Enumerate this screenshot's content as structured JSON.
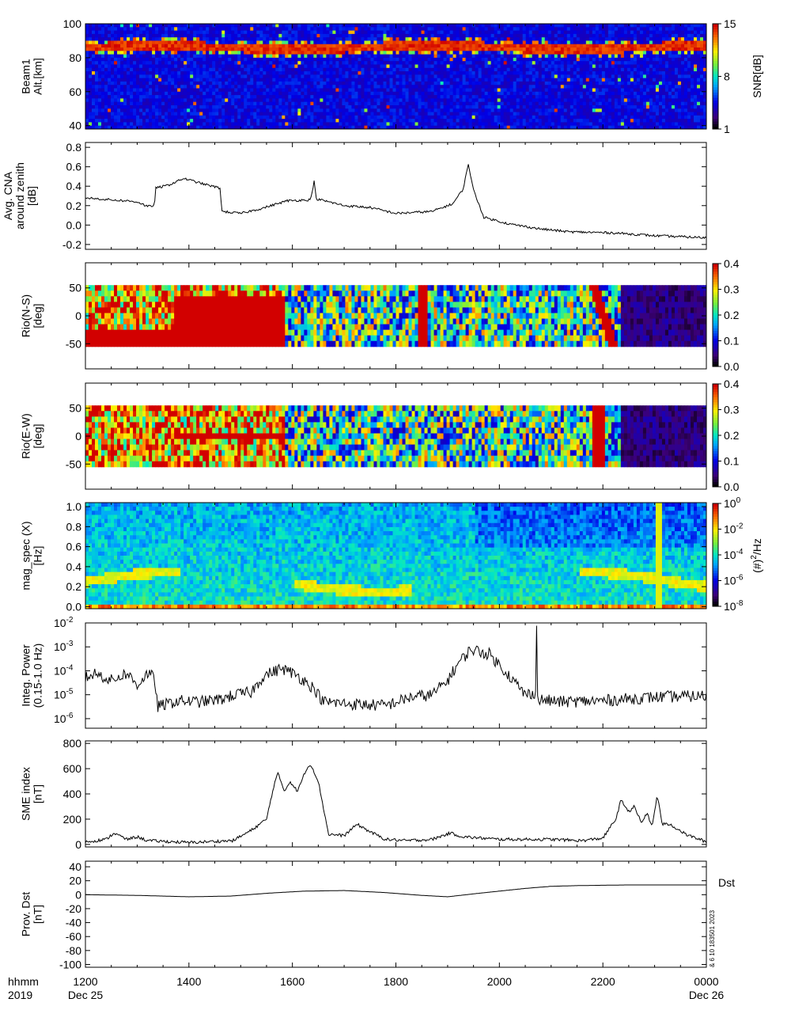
{
  "chart_data": [
    {
      "id": "beam",
      "type": "heatmap",
      "ylabel_lines": [
        "Beam1",
        "Alt.[km]"
      ],
      "ylim": [
        38,
        100
      ],
      "yticks": [
        40,
        60,
        80,
        100
      ],
      "colorbar": {
        "label": "SNR[dB]",
        "ticks": [
          "1",
          "8",
          "15"
        ],
        "range": [
          1,
          15
        ]
      },
      "description": "strong echo band around 82-90 km altitude across the whole interval"
    },
    {
      "id": "cna",
      "type": "line",
      "ylabel_lines": [
        "Avg. CNA",
        "around zenith",
        "[dB]"
      ],
      "ylim": [
        -0.25,
        0.85
      ],
      "yticks": [
        -0.2,
        0.0,
        0.2,
        0.4,
        0.6,
        0.8
      ],
      "ytick_labels": [
        "-0.2",
        "0.0",
        "0.2",
        "0.4",
        "0.6",
        "0.8"
      ],
      "points": [
        [
          0,
          0.28
        ],
        [
          0.5,
          0.26
        ],
        [
          1,
          0.24
        ],
        [
          1.2,
          0.19
        ],
        [
          1.33,
          0.2
        ],
        [
          1.36,
          0.38
        ],
        [
          1.6,
          0.41
        ],
        [
          1.9,
          0.48
        ],
        [
          2.3,
          0.42
        ],
        [
          2.6,
          0.38
        ],
        [
          2.64,
          0.14
        ],
        [
          3,
          0.12
        ],
        [
          3.4,
          0.17
        ],
        [
          3.9,
          0.25
        ],
        [
          4.35,
          0.26
        ],
        [
          4.42,
          0.45
        ],
        [
          4.46,
          0.27
        ],
        [
          5,
          0.2
        ],
        [
          5.5,
          0.18
        ],
        [
          6.0,
          0.12
        ],
        [
          6.7,
          0.14
        ],
        [
          7.1,
          0.22
        ],
        [
          7.3,
          0.37
        ],
        [
          7.4,
          0.63
        ],
        [
          7.5,
          0.36
        ],
        [
          7.7,
          0.08
        ],
        [
          8.2,
          0.01
        ],
        [
          8.8,
          -0.04
        ],
        [
          9.35,
          -0.07
        ],
        [
          10.2,
          -0.08
        ],
        [
          11.0,
          -0.11
        ],
        [
          12.0,
          -0.13
        ]
      ]
    },
    {
      "id": "rio_ns",
      "type": "heatmap",
      "ylabel_lines": [
        "Rio(N-S)",
        "[deg]"
      ],
      "ylim": [
        -95,
        95
      ],
      "yticks": [
        -50,
        0,
        50
      ],
      "colorbar": {
        "label": "",
        "ticks": [
          "0.0",
          "0.1",
          "0.2",
          "0.3",
          "0.4"
        ],
        "range": [
          0,
          0.4
        ]
      }
    },
    {
      "id": "rio_ew",
      "type": "heatmap",
      "ylabel_lines": [
        "Rio(E-W)",
        "[deg]"
      ],
      "ylim": [
        -95,
        95
      ],
      "yticks": [
        -50,
        0,
        50
      ],
      "colorbar": {
        "label": "",
        "ticks": [
          "0.0",
          "0.1",
          "0.2",
          "0.3",
          "0.4"
        ],
        "range": [
          0,
          0.4
        ]
      }
    },
    {
      "id": "magspec",
      "type": "heatmap",
      "ylabel_lines": [
        "mag_spec (X)",
        "[Hz]"
      ],
      "ylim": [
        -0.02,
        1.04
      ],
      "yticks": [
        0.0,
        0.2,
        0.4,
        0.6,
        0.8,
        1.0
      ],
      "ytick_labels": [
        "0.0",
        "0.2",
        "0.4",
        "0.6",
        "0.8",
        "1.0"
      ],
      "colorbar": {
        "label": "(#)",
        "label_sup": "2",
        "label_tail": "/Hz",
        "ticks": [
          "10",
          "10",
          "10",
          "10",
          "10"
        ],
        "tick_exps": [
          "0",
          "-2",
          "-4",
          "-6",
          "-8"
        ],
        "range": [
          -9,
          0
        ]
      }
    },
    {
      "id": "intpow",
      "type": "line",
      "ylabel_lines": [
        "Integ. Power",
        "(0.15-1.0 Hz)"
      ],
      "ylim_log10": [
        -6.4,
        -2
      ],
      "yticks_base": "10",
      "yticks_exp": [
        "-6",
        "-5",
        "-4",
        "-3",
        "-2"
      ],
      "points": [
        [
          0,
          -4.3
        ],
        [
          0.2,
          -4.1
        ],
        [
          0.5,
          -4.4
        ],
        [
          0.8,
          -4.1
        ],
        [
          1.0,
          -4.6
        ],
        [
          1.2,
          -4.1
        ],
        [
          1.33,
          -4.3
        ],
        [
          1.4,
          -5.5
        ],
        [
          1.8,
          -5.25
        ],
        [
          2.2,
          -5.3
        ],
        [
          2.6,
          -5.2
        ],
        [
          2.9,
          -5.0
        ],
        [
          3.2,
          -4.9
        ],
        [
          3.45,
          -4.2
        ],
        [
          3.8,
          -3.9
        ],
        [
          4.1,
          -4.2
        ],
        [
          4.4,
          -4.7
        ],
        [
          4.6,
          -5.3
        ],
        [
          5.2,
          -5.4
        ],
        [
          5.8,
          -5.45
        ],
        [
          6.3,
          -5.1
        ],
        [
          6.7,
          -5.0
        ],
        [
          7.0,
          -4.4
        ],
        [
          7.2,
          -3.7
        ],
        [
          7.45,
          -3.1
        ],
        [
          7.8,
          -3.3
        ],
        [
          8.15,
          -4.1
        ],
        [
          8.5,
          -5.0
        ],
        [
          8.7,
          -4.9
        ],
        [
          8.72,
          -2.1
        ],
        [
          8.74,
          -5.2
        ],
        [
          9.2,
          -5.3
        ],
        [
          10.0,
          -5.25
        ],
        [
          11.0,
          -5.1
        ],
        [
          12.0,
          -5.05
        ]
      ]
    },
    {
      "id": "sme",
      "type": "line",
      "ylabel_lines": [
        "SME index",
        "[nT]"
      ],
      "ylim": [
        -20,
        820
      ],
      "yticks": [
        0,
        200,
        400,
        600,
        800
      ],
      "points": [
        [
          0,
          20
        ],
        [
          0.4,
          40
        ],
        [
          0.55,
          90
        ],
        [
          0.8,
          40
        ],
        [
          1.0,
          60
        ],
        [
          1.2,
          30
        ],
        [
          2.0,
          15
        ],
        [
          2.85,
          30
        ],
        [
          3.2,
          110
        ],
        [
          3.5,
          200
        ],
        [
          3.65,
          480
        ],
        [
          3.72,
          560
        ],
        [
          3.85,
          420
        ],
        [
          3.95,
          500
        ],
        [
          4.1,
          420
        ],
        [
          4.25,
          580
        ],
        [
          4.35,
          640
        ],
        [
          4.5,
          500
        ],
        [
          4.7,
          80
        ],
        [
          5.0,
          70
        ],
        [
          5.25,
          160
        ],
        [
          5.5,
          100
        ],
        [
          5.8,
          40
        ],
        [
          6.2,
          30
        ],
        [
          6.7,
          40
        ],
        [
          7.05,
          90
        ],
        [
          7.3,
          60
        ],
        [
          8.0,
          40
        ],
        [
          9.0,
          40
        ],
        [
          9.6,
          30
        ],
        [
          10.0,
          50
        ],
        [
          10.25,
          200
        ],
        [
          10.35,
          350
        ],
        [
          10.5,
          260
        ],
        [
          10.6,
          300
        ],
        [
          10.75,
          170
        ],
        [
          10.85,
          250
        ],
        [
          10.95,
          140
        ],
        [
          11.05,
          390
        ],
        [
          11.15,
          160
        ],
        [
          11.3,
          160
        ],
        [
          11.6,
          80
        ],
        [
          12.0,
          20
        ]
      ]
    },
    {
      "id": "dst",
      "type": "line",
      "ylabel_lines": [
        "Prov. Dst",
        "[nT]"
      ],
      "ylim": [
        -104,
        48
      ],
      "yticks": [
        -100,
        -80,
        -60,
        -40,
        -20,
        0,
        20,
        40
      ],
      "right_label": "Dst",
      "points": [
        [
          0,
          0
        ],
        [
          1,
          -1
        ],
        [
          2,
          -3
        ],
        [
          2.8,
          -2
        ],
        [
          3.5,
          2
        ],
        [
          4.2,
          5
        ],
        [
          5.0,
          6
        ],
        [
          5.8,
          3
        ],
        [
          6.5,
          -1
        ],
        [
          7.0,
          -3
        ],
        [
          7.6,
          2
        ],
        [
          8.5,
          9
        ],
        [
          9.0,
          12
        ],
        [
          9.5,
          13
        ],
        [
          10.5,
          14
        ],
        [
          12.0,
          14
        ]
      ]
    }
  ],
  "x_axis": {
    "tick_labels": [
      "1200",
      "1400",
      "1600",
      "1800",
      "2000",
      "2200",
      "0000"
    ],
    "row_label": "hhmm",
    "year": "2019",
    "start_date": "Dec 25",
    "end_date": "Dec 26"
  },
  "side_note": "& 6 10 183501 2023"
}
